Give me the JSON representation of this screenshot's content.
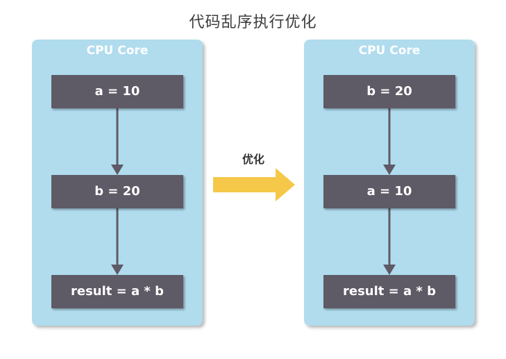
{
  "title": "代码乱序执行优化",
  "arrow_label": "优化",
  "colors": {
    "core_bg": "#b0dcee",
    "box_bg": "#5e5a66",
    "arrow": "#f5c84a",
    "connector": "#5e5a66"
  },
  "cores": [
    {
      "label": "CPU Core",
      "steps": [
        "a = 10",
        "b = 20",
        "result = a * b"
      ]
    },
    {
      "label": "CPU Core",
      "steps": [
        "b = 20",
        "a = 10",
        "result = a * b"
      ]
    }
  ]
}
